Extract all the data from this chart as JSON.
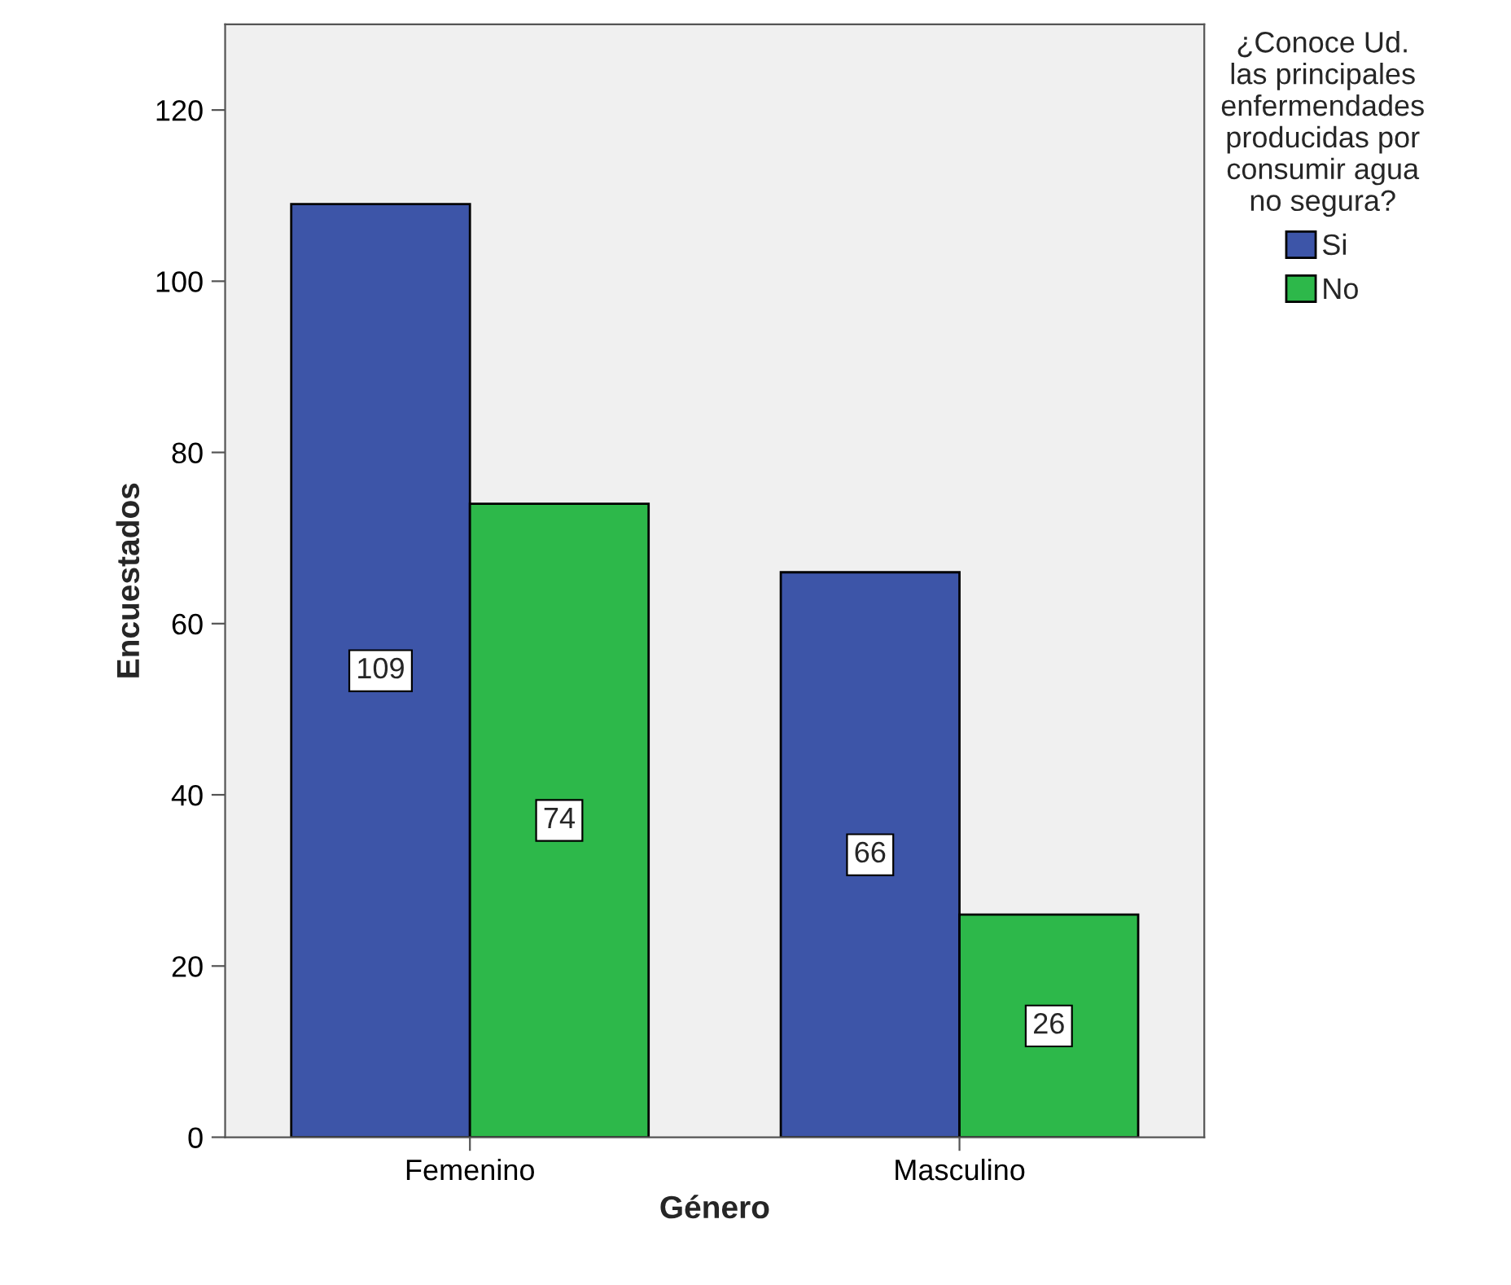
{
  "chart_data": {
    "type": "bar",
    "xlabel": "Género",
    "ylabel": "Encuestados",
    "categories": [
      "Femenino",
      "Masculino"
    ],
    "legend_title": "¿Conoce Ud.\nlas principales\nenfermendades\nproducidas por\nconsumir agua\nno segura?",
    "series": [
      {
        "name": "Si",
        "color": "#3d55a8",
        "values": [
          109,
          66
        ]
      },
      {
        "name": "No",
        "color": "#2db84a",
        "values": [
          74,
          26
        ]
      }
    ],
    "ylim": [
      0,
      130
    ],
    "yticks": [
      0,
      20,
      40,
      60,
      80,
      100,
      120
    ],
    "data_labels": true,
    "grid": false,
    "legend": "top right"
  }
}
